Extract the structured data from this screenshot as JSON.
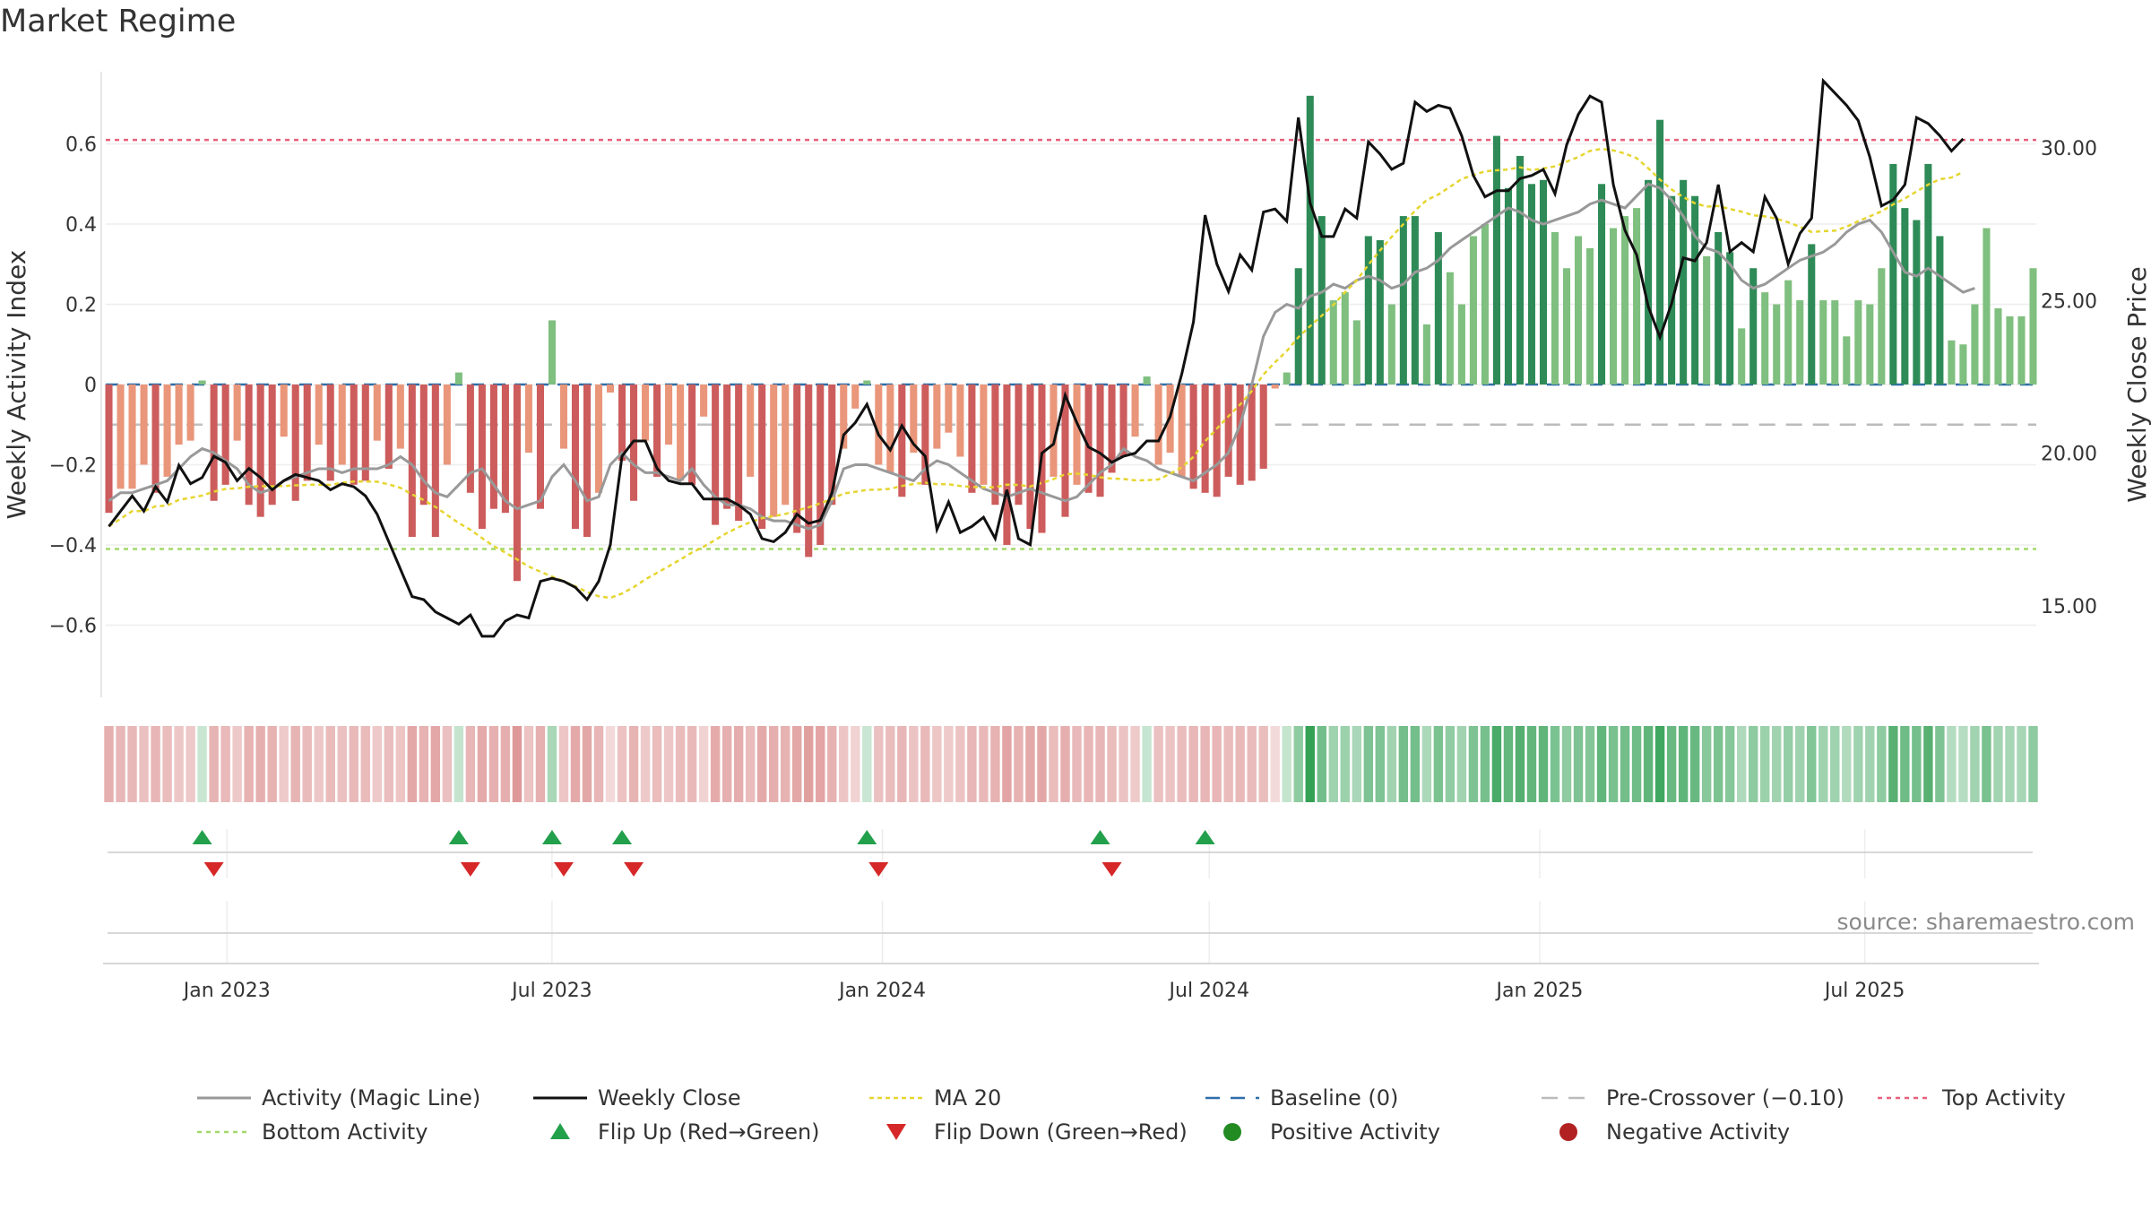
{
  "title": "Market Regime",
  "source": "source: sharemaestro.com",
  "chart_data": {
    "type": "bar",
    "x_start": "2022-10-24",
    "x_end": "2025-10-06",
    "x_frequency": "weekly",
    "x_ticks": [
      "Jan 2023",
      "Jul 2023",
      "Jan 2024",
      "Jul 2024",
      "Jan 2025",
      "Jul 2025"
    ],
    "x_tick_dates": [
      "2023-01-01",
      "2023-07-01",
      "2024-01-01",
      "2024-07-01",
      "2025-01-01",
      "2025-07-01"
    ],
    "ylabel_left": "Weekly Activity Index",
    "ylabel_right": "Weekly Close Price",
    "ylim_left": [
      -0.78,
      0.78
    ],
    "ylim_right": [
      12.0,
      32.5
    ],
    "yticks_left": [
      0.6,
      0.4,
      0.2,
      0,
      -0.2,
      -0.4,
      -0.6
    ],
    "ytick_labels_left": [
      "0.6",
      "0.4",
      "0.2",
      "0",
      "−0.2",
      "−0.4",
      "−0.6"
    ],
    "yticks_right": [
      30,
      25,
      20,
      15
    ],
    "ytick_labels_right": [
      "30.00",
      "25.00",
      "20.00",
      "15.00"
    ],
    "reference_lines": {
      "baseline": 0,
      "pre_crossover": -0.1,
      "top_activity": 0.61,
      "bottom_activity": -0.41
    },
    "activity": [
      -0.32,
      -0.26,
      -0.26,
      -0.2,
      -0.27,
      -0.23,
      -0.15,
      -0.14,
      0.01,
      -0.29,
      -0.25,
      -0.14,
      -0.3,
      -0.33,
      -0.3,
      -0.13,
      -0.29,
      -0.24,
      -0.15,
      -0.24,
      -0.2,
      -0.25,
      -0.24,
      -0.14,
      -0.21,
      -0.16,
      -0.38,
      -0.3,
      -0.38,
      -0.2,
      0.03,
      -0.27,
      -0.36,
      -0.31,
      -0.32,
      -0.49,
      -0.17,
      -0.31,
      0.16,
      -0.16,
      -0.36,
      -0.38,
      -0.27,
      -0.02,
      -0.19,
      -0.29,
      -0.14,
      -0.23,
      -0.15,
      -0.24,
      -0.25,
      -0.08,
      -0.35,
      -0.31,
      -0.34,
      -0.23,
      -0.36,
      -0.33,
      -0.3,
      -0.37,
      -0.43,
      -0.4,
      -0.3,
      -0.16,
      -0.06,
      0.01,
      -0.2,
      -0.22,
      -0.28,
      -0.17,
      -0.25,
      -0.16,
      -0.12,
      -0.18,
      -0.27,
      -0.25,
      -0.3,
      -0.4,
      -0.3,
      -0.36,
      -0.37,
      -0.23,
      -0.33,
      -0.25,
      -0.27,
      -0.28,
      -0.22,
      -0.18,
      -0.13,
      0.02,
      -0.2,
      -0.17,
      -0.23,
      -0.26,
      -0.27,
      -0.28,
      -0.23,
      -0.25,
      -0.24,
      -0.21,
      -0.01,
      0.03,
      0.29,
      0.72,
      0.42,
      0.21,
      0.23,
      0.16,
      0.37,
      0.36,
      0.2,
      0.42,
      0.42,
      0.15,
      0.38,
      0.28,
      0.2,
      0.37,
      0.4,
      0.62,
      0.49,
      0.57,
      0.5,
      0.51,
      0.38,
      0.29,
      0.37,
      0.34,
      0.5,
      0.39,
      0.42,
      0.44,
      0.51,
      0.66,
      0.47,
      0.51,
      0.47,
      0.32,
      0.38,
      0.33,
      0.14,
      0.29,
      0.23,
      0.2,
      0.26,
      0.21,
      0.35,
      0.21,
      0.21,
      0.12,
      0.21,
      0.2,
      0.29,
      0.55,
      0.44,
      0.41,
      0.55,
      0.37,
      0.11,
      0.1,
      0.2,
      0.39,
      0.19,
      0.17,
      0.17,
      0.29
    ],
    "magic_line": [
      -0.29,
      -0.27,
      -0.27,
      -0.26,
      -0.25,
      -0.24,
      -0.21,
      -0.18,
      -0.16,
      -0.17,
      -0.19,
      -0.21,
      -0.25,
      -0.27,
      -0.26,
      -0.24,
      -0.23,
      -0.22,
      -0.21,
      -0.21,
      -0.22,
      -0.21,
      -0.21,
      -0.21,
      -0.2,
      -0.18,
      -0.2,
      -0.24,
      -0.27,
      -0.28,
      -0.25,
      -0.22,
      -0.21,
      -0.25,
      -0.29,
      -0.31,
      -0.3,
      -0.29,
      -0.23,
      -0.2,
      -0.24,
      -0.29,
      -0.28,
      -0.2,
      -0.17,
      -0.2,
      -0.22,
      -0.22,
      -0.23,
      -0.24,
      -0.21,
      -0.25,
      -0.28,
      -0.3,
      -0.3,
      -0.31,
      -0.33,
      -0.34,
      -0.34,
      -0.35,
      -0.36,
      -0.35,
      -0.29,
      -0.21,
      -0.2,
      -0.2,
      -0.21,
      -0.22,
      -0.23,
      -0.24,
      -0.21,
      -0.19,
      -0.2,
      -0.22,
      -0.24,
      -0.26,
      -0.27,
      -0.28,
      -0.27,
      -0.26,
      -0.27,
      -0.28,
      -0.29,
      -0.28,
      -0.25,
      -0.22,
      -0.2,
      -0.16,
      -0.18,
      -0.19,
      -0.21,
      -0.22,
      -0.23,
      -0.24,
      -0.22,
      -0.2,
      -0.17,
      -0.1,
      0.0,
      0.12,
      0.18,
      0.2,
      0.19,
      0.22,
      0.23,
      0.25,
      0.24,
      0.26,
      0.27,
      0.26,
      0.24,
      0.25,
      0.28,
      0.29,
      0.31,
      0.34,
      0.36,
      0.38,
      0.4,
      0.42,
      0.44,
      0.43,
      0.41,
      0.4,
      0.41,
      0.42,
      0.43,
      0.45,
      0.46,
      0.45,
      0.44,
      0.47,
      0.5,
      0.49,
      0.46,
      0.42,
      0.37,
      0.34,
      0.33,
      0.3,
      0.26,
      0.24,
      0.25,
      0.27,
      0.29,
      0.31,
      0.32,
      0.33,
      0.35,
      0.38,
      0.4,
      0.41,
      0.38,
      0.33,
      0.28,
      0.27,
      0.29,
      0.27,
      0.25,
      0.23,
      0.24
    ],
    "weekly_close": [
      17.6,
      18.1,
      18.6,
      18.1,
      18.9,
      18.4,
      19.6,
      19.0,
      19.2,
      19.9,
      19.7,
      19.1,
      19.5,
      19.2,
      18.8,
      19.1,
      19.3,
      19.2,
      19.1,
      18.8,
      19.0,
      18.9,
      18.6,
      18.0,
      17.1,
      16.2,
      15.3,
      15.2,
      14.8,
      14.6,
      14.4,
      14.7,
      14.0,
      14.0,
      14.5,
      14.7,
      14.6,
      15.8,
      15.9,
      15.8,
      15.6,
      15.2,
      15.8,
      17.0,
      19.9,
      20.4,
      20.4,
      19.5,
      19.1,
      19.0,
      19.0,
      18.5,
      18.5,
      18.5,
      18.3,
      18.0,
      17.2,
      17.1,
      17.4,
      18.0,
      17.7,
      17.8,
      18.7,
      20.6,
      21.0,
      21.6,
      20.6,
      20.1,
      20.9,
      20.3,
      19.9,
      17.5,
      18.4,
      17.4,
      17.6,
      17.9,
      17.2,
      18.8,
      17.2,
      17.0,
      20.0,
      20.3,
      21.9,
      21.0,
      20.2,
      20.0,
      19.7,
      19.9,
      20.0,
      20.4,
      20.4,
      21.2,
      22.6,
      24.3,
      27.8,
      26.2,
      25.3,
      26.5,
      26.0,
      27.9,
      28.0,
      27.6,
      31.0,
      28.2,
      27.1,
      27.1,
      28.0,
      27.7,
      30.2,
      29.8,
      29.3,
      29.5,
      31.5,
      31.2,
      31.4,
      31.3,
      30.4,
      29.1,
      28.4,
      28.6,
      28.6,
      29.0,
      29.1,
      29.3,
      28.5,
      30.1,
      31.1,
      31.7,
      31.5,
      28.8,
      27.3,
      26.5,
      24.8,
      23.8,
      24.9,
      26.4,
      26.3,
      26.9,
      28.8,
      26.6,
      26.9,
      26.6,
      28.4,
      27.7,
      26.2,
      27.2,
      27.7,
      32.2,
      31.8,
      31.4,
      30.9,
      29.7,
      28.1,
      28.3,
      28.8,
      31.0,
      30.8,
      30.4,
      29.9,
      30.3
    ],
    "flip_up_index": [
      8,
      30,
      38,
      44,
      65,
      85,
      94
    ],
    "flip_down_index": [
      9,
      31,
      39,
      45,
      66,
      86
    ],
    "legend": [
      {
        "label": "Activity (Magic Line)",
        "key": "magic"
      },
      {
        "label": "Weekly Close",
        "key": "close"
      },
      {
        "label": "MA 20",
        "key": "ma"
      },
      {
        "label": "Baseline (0)",
        "key": "baseline"
      },
      {
        "label": "Pre-Crossover (−0.10)",
        "key": "pre"
      },
      {
        "label": "Top Activity",
        "key": "top"
      },
      {
        "label": "Bottom Activity",
        "key": "bottom"
      },
      {
        "label": "Flip Up (Red→Green)",
        "key": "flipup"
      },
      {
        "label": "Flip Down (Green→Red)",
        "key": "flipdown"
      },
      {
        "label": "Positive Activity",
        "key": "pos"
      },
      {
        "label": "Negative Activity",
        "key": "neg"
      }
    ],
    "legend_position": "bottom",
    "colors": {
      "magic": "#999999",
      "close": "#111111",
      "ma": "#e6d530",
      "baseline": "#2f6ea8",
      "pre": "#bbbbbb",
      "top": "#e8607c",
      "bottom": "#a3d86a",
      "flip_up": "#22a04b",
      "flip_down": "#d62828",
      "pos_strong": "#2e8b57",
      "pos_light": "#7fbf7f",
      "neg_strong": "#cd5c5c",
      "neg_light": "#e9967a",
      "pos_dot": "#228b22",
      "neg_dot": "#b22222"
    }
  }
}
